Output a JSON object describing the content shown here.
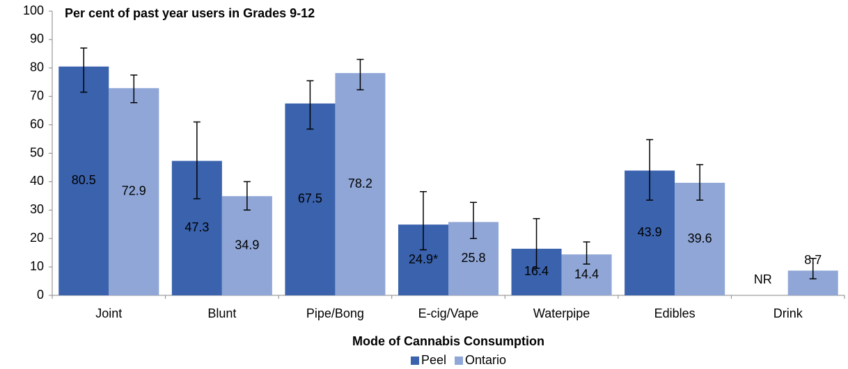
{
  "chart_data": {
    "type": "bar",
    "title": "Per cent of past year users in Grades 9-12",
    "x_label": "Mode of Cannabis Consumption",
    "categories": [
      "Joint",
      "Blunt",
      "Pipe/Bong",
      "E-cig/Vape",
      "Waterpipe",
      "Edibles",
      "Drink"
    ],
    "series": [
      {
        "name": "Peel",
        "color": "#3a62ad",
        "values": [
          80.5,
          47.3,
          67.5,
          24.9,
          16.4,
          43.9,
          null
        ],
        "value_labels": [
          "80.5",
          "47.3",
          "67.5",
          "24.9*",
          "16.4",
          "43.9",
          "NR"
        ],
        "ci_low": [
          71.5,
          34,
          58.5,
          16,
          9.5,
          33.5,
          null
        ],
        "ci_high": [
          87,
          61,
          75.5,
          36.5,
          27,
          54.8,
          null
        ]
      },
      {
        "name": "Ontario",
        "color": "#8fa6d6",
        "values": [
          72.9,
          34.9,
          78.2,
          25.8,
          14.4,
          39.6,
          8.7
        ],
        "ci_low": [
          67.8,
          30,
          72.3,
          20,
          11,
          33.5,
          5.8
        ],
        "ci_high": [
          77.5,
          40,
          83,
          32.7,
          18.8,
          46,
          13
        ]
      }
    ],
    "ylim": [
      0,
      100
    ],
    "yticks": [
      0,
      10,
      20,
      30,
      40,
      50,
      60,
      70,
      80,
      90,
      100
    ],
    "grid": false,
    "legend": "bottom"
  }
}
